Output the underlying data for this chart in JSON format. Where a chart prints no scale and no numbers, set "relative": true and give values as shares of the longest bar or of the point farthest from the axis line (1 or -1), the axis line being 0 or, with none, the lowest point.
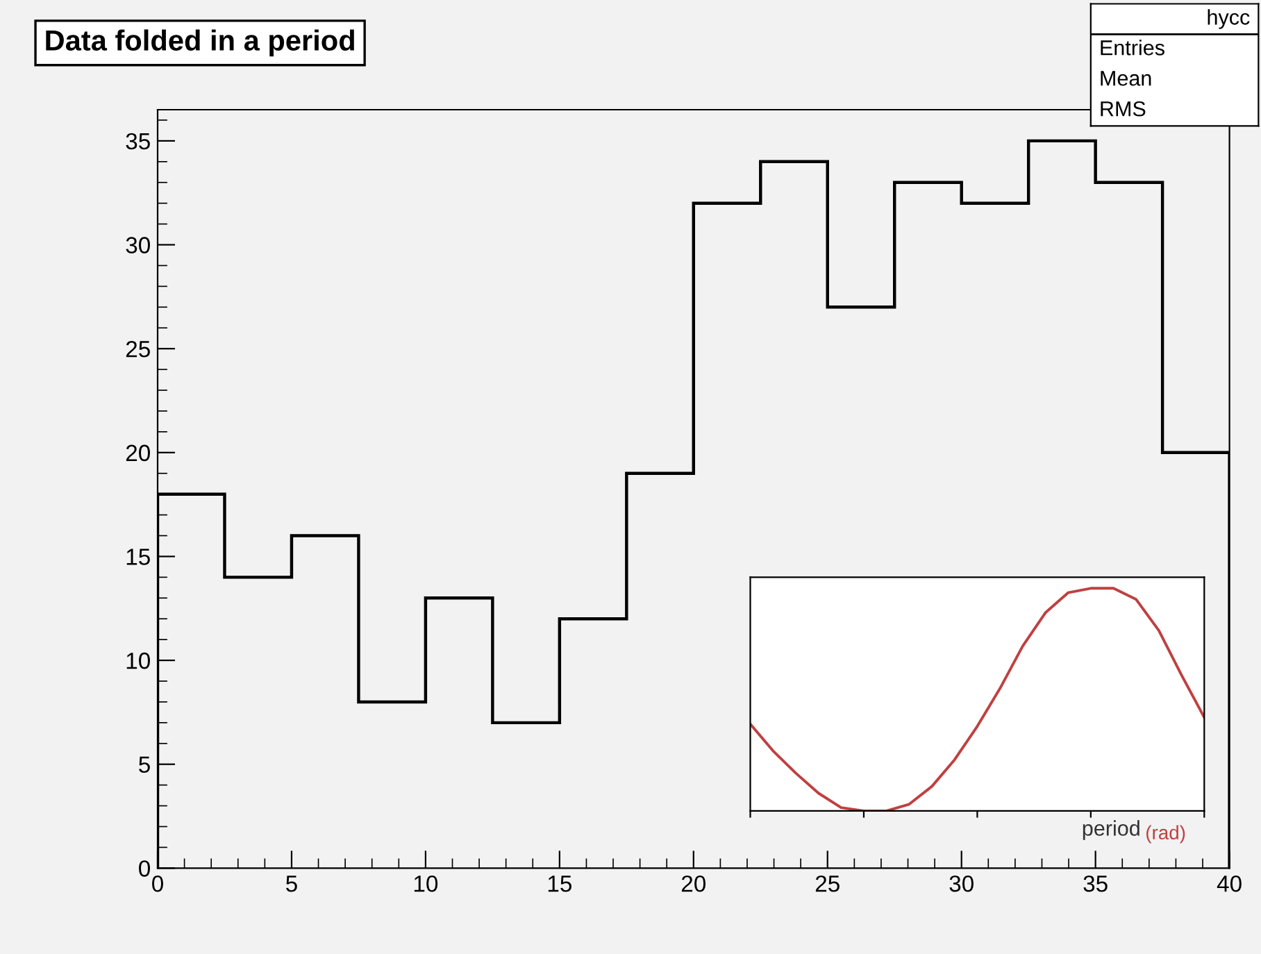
{
  "chart_data": [
    {
      "type": "histogram",
      "title": "Data folded in a period",
      "bins": [
        0,
        2.5,
        5,
        7.5,
        10,
        12.5,
        15,
        17.5,
        20,
        22.5,
        25,
        27.5,
        30,
        32.5,
        35,
        37.5,
        40
      ],
      "values": [
        18,
        14,
        16,
        8,
        13,
        7,
        12,
        19,
        32,
        34,
        27,
        33,
        32,
        35,
        33,
        20
      ],
      "color": "#000000",
      "xlim": [
        0,
        40
      ],
      "xticks": [
        0,
        5,
        10,
        15,
        20,
        25,
        30,
        35,
        40
      ],
      "ylim": [
        0,
        36.5
      ],
      "yticks": [
        0,
        5,
        10,
        15,
        20,
        25,
        30,
        35
      ],
      "grid": false,
      "annotations": [
        "hycc",
        "Entries",
        "Mean",
        "RMS"
      ]
    },
    {
      "type": "line",
      "relative": true,
      "xlabel": "period",
      "annotations": [
        "(rad)"
      ],
      "categories": [
        null,
        null,
        null,
        null,
        null,
        null,
        null,
        null,
        null,
        null,
        null,
        null,
        null,
        null,
        null,
        null,
        null,
        null,
        null,
        null,
        null
      ],
      "series": [
        {
          "color": "#c04040",
          "values": [
            0.39,
            0.27,
            0.17,
            0.08,
            0.015,
            0,
            0,
            0.03,
            0.11,
            0.23,
            0.38,
            0.55,
            0.74,
            0.89,
            0.98,
            1,
            1,
            0.95,
            0.81,
            0.61,
            0.42
          ]
        }
      ],
      "tick_labels": false,
      "grid": false
    }
  ]
}
